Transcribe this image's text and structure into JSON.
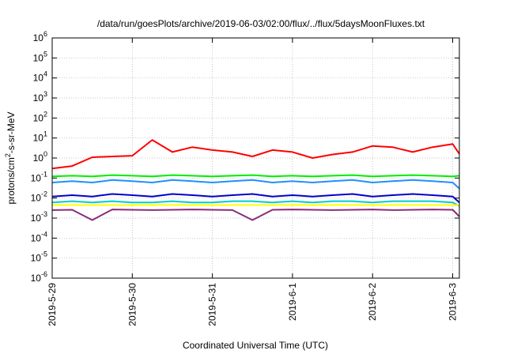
{
  "chart_data": {
    "type": "line",
    "title": "/data/run/goesPlots/archive/2019-06-03/02:00/flux/../flux/5daysMoonFluxes.txt",
    "xlabel": "Coordinated Universal Time (UTC)",
    "ylabel": {
      "prefix": "protons/cm",
      "sup": "2",
      "suffix": "-s-sr-MeV"
    },
    "yscale": "log",
    "ylim": [
      1e-06,
      1000000.0
    ],
    "y_ticks": [
      {
        "base": "10",
        "exp": "-6",
        "value": -6
      },
      {
        "base": "10",
        "exp": "-5",
        "value": -5
      },
      {
        "base": "10",
        "exp": "-4",
        "value": -4
      },
      {
        "base": "10",
        "exp": "-3",
        "value": -3
      },
      {
        "base": "10",
        "exp": "-2",
        "value": -2
      },
      {
        "base": "10",
        "exp": "-1",
        "value": -1
      },
      {
        "base": "10",
        "exp": "0",
        "value": 0
      },
      {
        "base": "10",
        "exp": "1",
        "value": 1
      },
      {
        "base": "10",
        "exp": "2",
        "value": 2
      },
      {
        "base": "10",
        "exp": "3",
        "value": 3
      },
      {
        "base": "10",
        "exp": "4",
        "value": 4
      },
      {
        "base": "10",
        "exp": "5",
        "value": 5
      },
      {
        "base": "10",
        "exp": "6",
        "value": 6
      }
    ],
    "xlim": [
      "2019-05-29",
      "2019-06-03 02:00"
    ],
    "x_ticks": [
      {
        "label": "2019-5-29",
        "value": "2019-05-29"
      },
      {
        "label": "2019-5-30",
        "value": "2019-05-30"
      },
      {
        "label": "2019-5-31",
        "value": "2019-05-31"
      },
      {
        "label": "2019-6-1",
        "value": "2019-06-01"
      },
      {
        "label": "2019-6-2",
        "value": "2019-06-02"
      },
      {
        "label": "2019-6-3",
        "value": "2019-06-03"
      }
    ],
    "grid": true,
    "x": [
      "2019-05-29 00:00",
      "2019-05-29 06:00",
      "2019-05-29 12:00",
      "2019-05-29 18:00",
      "2019-05-30 00:00",
      "2019-05-30 06:00",
      "2019-05-30 12:00",
      "2019-05-30 18:00",
      "2019-05-31 00:00",
      "2019-05-31 06:00",
      "2019-05-31 12:00",
      "2019-05-31 18:00",
      "2019-06-01 00:00",
      "2019-06-01 06:00",
      "2019-06-01 12:00",
      "2019-06-01 18:00",
      "2019-06-02 00:00",
      "2019-06-02 06:00",
      "2019-06-02 12:00",
      "2019-06-02 18:00",
      "2019-06-03 00:00",
      "2019-06-03 02:00"
    ],
    "series": [
      {
        "color": "#ff0000",
        "values": [
          0.3,
          0.4,
          1.1,
          1.2,
          1.3,
          8.0,
          2.0,
          3.5,
          2.5,
          2.0,
          1.2,
          2.5,
          2.0,
          1.0,
          1.5,
          2.0,
          4.0,
          3.5,
          2.0,
          3.5,
          5.0,
          1.6
        ]
      },
      {
        "color": "#00ee00",
        "values": [
          0.12,
          0.13,
          0.12,
          0.14,
          0.13,
          0.12,
          0.14,
          0.13,
          0.12,
          0.13,
          0.14,
          0.12,
          0.13,
          0.12,
          0.13,
          0.14,
          0.12,
          0.13,
          0.14,
          0.13,
          0.12,
          0.13
        ]
      },
      {
        "color": "#1e90ff",
        "values": [
          0.06,
          0.07,
          0.06,
          0.08,
          0.07,
          0.06,
          0.08,
          0.07,
          0.06,
          0.07,
          0.08,
          0.06,
          0.07,
          0.06,
          0.07,
          0.08,
          0.06,
          0.07,
          0.08,
          0.07,
          0.06,
          0.03
        ]
      },
      {
        "color": "#0000cc",
        "values": [
          0.012,
          0.014,
          0.012,
          0.016,
          0.014,
          0.012,
          0.016,
          0.014,
          0.012,
          0.014,
          0.016,
          0.012,
          0.014,
          0.012,
          0.014,
          0.016,
          0.012,
          0.014,
          0.016,
          0.014,
          0.012,
          0.006
        ]
      },
      {
        "color": "#00cccc",
        "values": [
          0.006,
          0.007,
          0.006,
          0.007,
          0.006,
          0.006,
          0.007,
          0.006,
          0.006,
          0.007,
          0.007,
          0.006,
          0.007,
          0.006,
          0.007,
          0.007,
          0.006,
          0.007,
          0.007,
          0.007,
          0.006,
          0.004
        ]
      },
      {
        "color": "#ffff00",
        "values": [
          0.0045,
          0.0045,
          0.0045,
          0.0045,
          0.0045,
          0.0045,
          0.0045,
          0.0045,
          0.0045,
          0.0045,
          0.0045,
          0.0045,
          0.0045,
          0.0045,
          0.0045,
          0.0045,
          0.0045,
          0.0045,
          0.0045,
          0.0045,
          0.0045,
          0.0045
        ]
      },
      {
        "color": "#8b2a7a",
        "values": [
          0.0025,
          0.0026,
          0.0008,
          0.0027,
          0.0026,
          0.0025,
          0.0026,
          0.0027,
          0.0026,
          0.0025,
          0.0008,
          0.0026,
          0.0027,
          0.0026,
          0.0025,
          0.0026,
          0.0027,
          0.0025,
          0.0026,
          0.0027,
          0.0026,
          0.0012
        ]
      }
    ]
  }
}
